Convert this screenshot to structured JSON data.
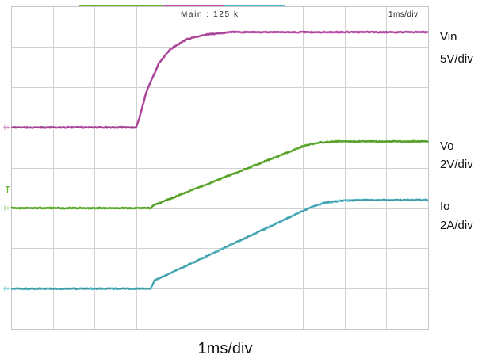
{
  "scope": {
    "record_info": "Main : 125 k",
    "timebase": "1ms/div"
  },
  "chart_data": {
    "type": "line",
    "xlabel": "1ms/div",
    "xlim": [
      0,
      10
    ],
    "grid": true,
    "legend": "right",
    "series": [
      {
        "name": "Vin",
        "scale": "5V/div",
        "color": "#c24fae",
        "points": [
          [
            0,
            0
          ],
          [
            3.0,
            0
          ],
          [
            3.1,
            1.6
          ],
          [
            3.25,
            4.5
          ],
          [
            3.54,
            7.9
          ],
          [
            3.82,
            9.7
          ],
          [
            4.2,
            10.9
          ],
          [
            4.68,
            11.5
          ],
          [
            5.25,
            11.8
          ],
          [
            10,
            11.8
          ]
        ]
      },
      {
        "name": "Vo",
        "scale": "2V/div",
        "color": "#66b832",
        "points": [
          [
            0,
            0
          ],
          [
            3.35,
            0
          ],
          [
            3.4,
            0.12
          ],
          [
            7.05,
            3.1
          ],
          [
            7.4,
            3.25
          ],
          [
            7.8,
            3.3
          ],
          [
            10,
            3.3
          ]
        ]
      },
      {
        "name": "Io",
        "scale": "2A/div",
        "color": "#52bccd",
        "points": [
          [
            0,
            0
          ],
          [
            3.35,
            0
          ],
          [
            3.44,
            0.4
          ],
          [
            7.15,
            4.0
          ],
          [
            7.5,
            4.25
          ],
          [
            7.9,
            4.36
          ],
          [
            8.4,
            4.4
          ],
          [
            10,
            4.4
          ]
        ]
      }
    ]
  }
}
